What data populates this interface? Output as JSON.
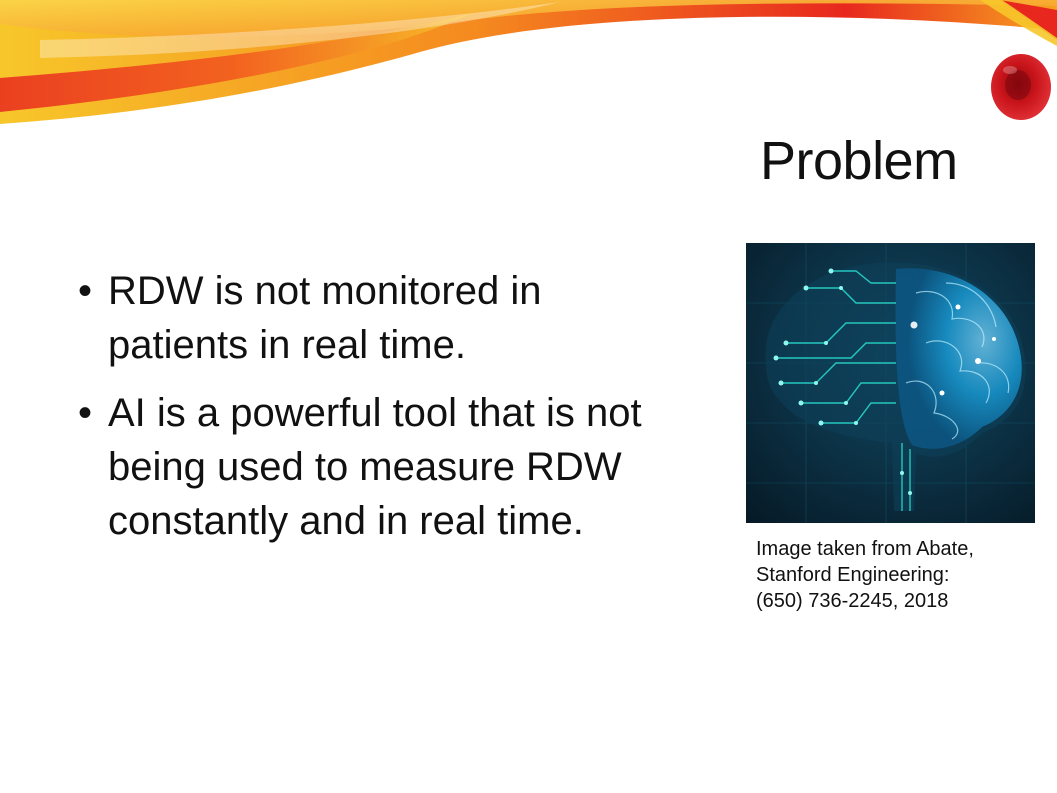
{
  "slide": {
    "title": "Problem",
    "bullets": [
      "RDW is not monitored in patients in real time.",
      "AI is a powerful tool that is not being used to measure RDW constantly and in real time."
    ],
    "bullet_glyph": "•",
    "image": {
      "icon": "brain-circuit-image",
      "caption_lines": [
        "Image taken from Abate,",
        "Stanford Engineering:",
        "(650) 736-2245, 2018"
      ]
    }
  },
  "colors": {
    "banner_red": "#e8281e",
    "banner_orange": "#f58a1f",
    "banner_yellow": "#f7c72a",
    "rbc_red": "#c8141a",
    "brain_blue": "#1aa3e0",
    "circuit_teal": "#29e0d0",
    "photo_bg": "#0a2a3a"
  }
}
